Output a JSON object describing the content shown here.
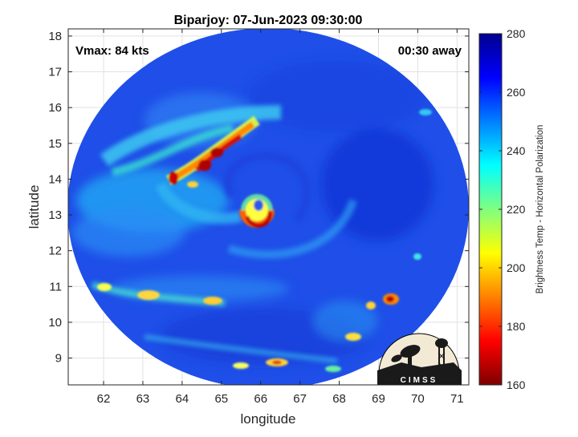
{
  "title": "Biparjoy: 07-Jun-2023 09:30:00",
  "annotations": {
    "vmax": "Vmax: 84 kts",
    "time_offset": "00:30 away"
  },
  "axes": {
    "xlabel": "longitude",
    "ylabel": "latitude",
    "xlim": [
      61.1,
      71.3
    ],
    "ylim": [
      8.25,
      18.2
    ],
    "xticks": [
      62,
      63,
      64,
      65,
      66,
      67,
      68,
      69,
      70,
      71
    ],
    "yticks": [
      9,
      10,
      11,
      12,
      13,
      14,
      15,
      16,
      17,
      18
    ],
    "grid": true
  },
  "colorbar": {
    "label": "Brightness Temp - Horizontal Polarization",
    "range": [
      160,
      280
    ],
    "ticks": [
      160,
      180,
      200,
      220,
      240,
      260,
      280
    ],
    "colormap": "jet-reversed",
    "stops": [
      "#7f0000",
      "#ff0000",
      "#ff8000",
      "#ffff00",
      "#80ff80",
      "#00ffff",
      "#0080ff",
      "#0000ff",
      "#00008f"
    ]
  },
  "swath": {
    "center_lon": 66.15,
    "center_lat": 13.2,
    "background_color": "#1f4fe8"
  },
  "storm": {
    "eye_lon": 66.0,
    "eye_lat": 13.05
  },
  "logo": {
    "text": "CIMSS"
  }
}
